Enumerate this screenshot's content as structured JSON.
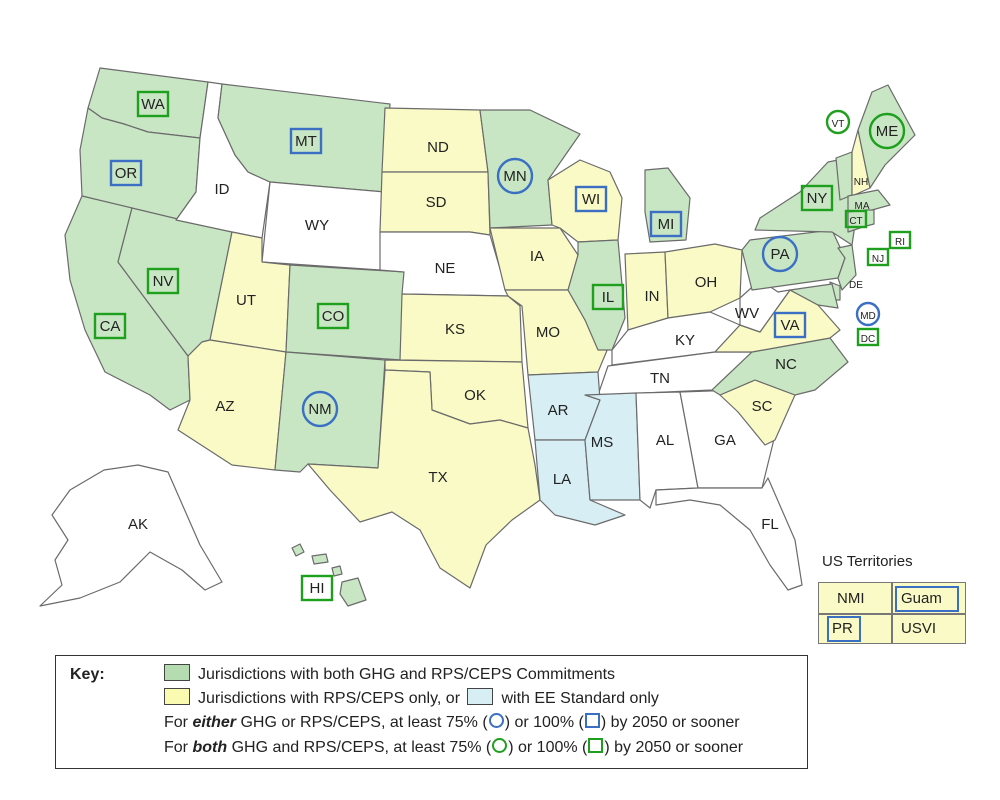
{
  "states": [
    "WA",
    "OR",
    "CA",
    "NV",
    "ID",
    "MT",
    "WY",
    "UT",
    "AZ",
    "CO",
    "NM",
    "ND",
    "SD",
    "NE",
    "KS",
    "OK",
    "TX",
    "MN",
    "IA",
    "MO",
    "AR",
    "LA",
    "WI",
    "IL",
    "MI",
    "IN",
    "OH",
    "KY",
    "TN",
    "MS",
    "AL",
    "GA",
    "FL",
    "SC",
    "NC",
    "VA",
    "WV",
    "PA",
    "NY",
    "VT",
    "NH",
    "ME",
    "MA",
    "CT",
    "RI",
    "NJ",
    "DE",
    "MD",
    "DC",
    "AK",
    "HI"
  ],
  "categories": {
    "both_ghg_rps": {
      "color": "#c8e6c4",
      "states": [
        "WA",
        "OR",
        "CA",
        "NV",
        "MT",
        "CO",
        "NM",
        "MN",
        "IL",
        "MI",
        "NY",
        "PA",
        "NC",
        "VT",
        "ME",
        "MA",
        "CT",
        "RI",
        "NJ",
        "DE",
        "MD",
        "DC",
        "HI"
      ]
    },
    "rps_only": {
      "color": "#fafac6",
      "states": [
        "UT",
        "AZ",
        "ND",
        "SD",
        "KS",
        "OK",
        "TX",
        "IA",
        "MO",
        "WI",
        "IN",
        "OH",
        "NH",
        "VA",
        "SC"
      ]
    },
    "ee_standard_only": {
      "color": "#d6eef4",
      "states": [
        "AR",
        "LA",
        "MS"
      ]
    },
    "none": {
      "color": "#ffffff",
      "states": [
        "ID",
        "WY",
        "NE",
        "KY",
        "TN",
        "AL",
        "GA",
        "FL",
        "WV",
        "AK"
      ]
    }
  },
  "markers": {
    "either_75_circle": [
      "MN",
      "NM",
      "PA",
      "MD"
    ],
    "either_100_square": [
      "OR",
      "MT",
      "WI",
      "MI",
      "VA"
    ],
    "both_75_circle": [
      "VT",
      "ME"
    ],
    "both_100_square": [
      "WA",
      "CA",
      "NV",
      "CO",
      "IL",
      "NY",
      "CT",
      "RI",
      "NJ",
      "DC",
      "HI"
    ]
  },
  "territories": {
    "title": "US Territories",
    "items": [
      {
        "label": "NMI",
        "category": "rps_only",
        "marker": "none"
      },
      {
        "label": "Guam",
        "category": "rps_only",
        "marker": "either_100_square"
      },
      {
        "label": "PR",
        "category": "rps_only",
        "marker": "either_100_square"
      },
      {
        "label": "USVI",
        "category": "rps_only",
        "marker": "none"
      }
    ]
  },
  "key": {
    "title": "Key:",
    "line1": "Jurisdictions with both GHG and RPS/CEPS Commitments",
    "line2a": "Jurisdictions with RPS/CEPS only, or",
    "line2b": "with EE Standard only",
    "line3a": "For",
    "line3b": "either",
    "line3c": "GHG or RPS/CEPS, at least 75% (",
    "line3d": ") or 100% (",
    "line3e": ") by 2050 or sooner",
    "line4a": "For",
    "line4b": "both",
    "line4c": "GHG and RPS/CEPS, at least 75% (",
    "line4d": ") or 100% (",
    "line4e": ") by 2050 or sooner"
  },
  "colors": {
    "either_marker": "#3b6fc4",
    "both_marker": "#1ea01e",
    "border": "#6b6b6b"
  }
}
